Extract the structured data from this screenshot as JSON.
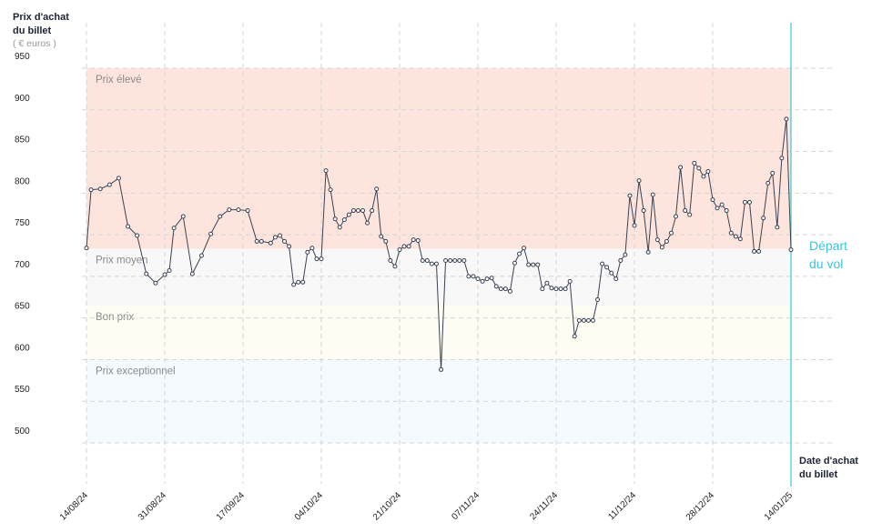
{
  "chart_data": {
    "type": "line",
    "y_label": [
      "Prix d'achat",
      "du billet"
    ],
    "y_unit": "( € euros )",
    "x_label": [
      "Date d'achat",
      "du billet"
    ],
    "xlim": [
      "2024-08-14",
      "2025-01-14"
    ],
    "xticks": [
      {
        "value": "2024-08-14",
        "label": "14/08/24"
      },
      {
        "value": "2024-08-31",
        "label": "31/08/24"
      },
      {
        "value": "2024-09-17",
        "label": "17/09/24"
      },
      {
        "value": "2024-10-04",
        "label": "04/10/24"
      },
      {
        "value": "2024-10-21",
        "label": "21/10/24"
      },
      {
        "value": "2024-11-07",
        "label": "07/11/24"
      },
      {
        "value": "2024-11-24",
        "label": "24/11/24"
      },
      {
        "value": "2024-12-11",
        "label": "11/12/24"
      },
      {
        "value": "2024-12-28",
        "label": "28/12/24"
      },
      {
        "value": "2025-01-14",
        "label": "14/01/25"
      }
    ],
    "ylim": [
      500,
      950
    ],
    "yticks": [
      500,
      550,
      600,
      650,
      700,
      750,
      800,
      850,
      900,
      950
    ],
    "grid": true,
    "bands": [
      {
        "name": "Prix élevé",
        "from": 733,
        "to": 950,
        "color": "#fde5de"
      },
      {
        "name": "Prix moyen",
        "from": 665,
        "to": 733,
        "color": "#f8f8f9"
      },
      {
        "name": "Bon prix",
        "from": 600,
        "to": 665,
        "color": "#fdfdf3"
      },
      {
        "name": "Prix exceptionnel",
        "from": 500,
        "to": 600,
        "color": "#f4fafd"
      }
    ],
    "marker_line": {
      "x": "2025-01-14",
      "label": [
        "Départ",
        "du vol"
      ],
      "color": "#3cc4dc"
    },
    "x": [
      "2024-08-14",
      "2024-08-15",
      "2024-08-17",
      "2024-08-19",
      "2024-08-21",
      "2024-08-23",
      "2024-08-25",
      "2024-08-27",
      "2024-08-29",
      "2024-08-31",
      "2024-09-01",
      "2024-09-02",
      "2024-09-04",
      "2024-09-06",
      "2024-09-08",
      "2024-09-10",
      "2024-09-12",
      "2024-09-14",
      "2024-09-16",
      "2024-09-18",
      "2024-09-20",
      "2024-09-21",
      "2024-09-23",
      "2024-09-24",
      "2024-09-25",
      "2024-09-26",
      "2024-09-27",
      "2024-09-28",
      "2024-09-29",
      "2024-09-30",
      "2024-10-01",
      "2024-10-02",
      "2024-10-03",
      "2024-10-04",
      "2024-10-05",
      "2024-10-06",
      "2024-10-07",
      "2024-10-08",
      "2024-10-09",
      "2024-10-10",
      "2024-10-11",
      "2024-10-12",
      "2024-10-13",
      "2024-10-14",
      "2024-10-15",
      "2024-10-16",
      "2024-10-17",
      "2024-10-18",
      "2024-10-19",
      "2024-10-20",
      "2024-10-21",
      "2024-10-22",
      "2024-10-23",
      "2024-10-24",
      "2024-10-25",
      "2024-10-26",
      "2024-10-27",
      "2024-10-28",
      "2024-10-29",
      "2024-10-30",
      "2024-10-31",
      "2024-11-01",
      "2024-11-02",
      "2024-11-03",
      "2024-11-04",
      "2024-11-05",
      "2024-11-06",
      "2024-11-07",
      "2024-11-08",
      "2024-11-09",
      "2024-11-10",
      "2024-11-11",
      "2024-11-12",
      "2024-11-13",
      "2024-11-14",
      "2024-11-15",
      "2024-11-16",
      "2024-11-17",
      "2024-11-18",
      "2024-11-19",
      "2024-11-20",
      "2024-11-21",
      "2024-11-22",
      "2024-11-23",
      "2024-11-24",
      "2024-11-25",
      "2024-11-26",
      "2024-11-27",
      "2024-11-28",
      "2024-11-29",
      "2024-11-30",
      "2024-12-01",
      "2024-12-02",
      "2024-12-03",
      "2024-12-04",
      "2024-12-05",
      "2024-12-06",
      "2024-12-07",
      "2024-12-08",
      "2024-12-09",
      "2024-12-10",
      "2024-12-11",
      "2024-12-12",
      "2024-12-13",
      "2024-12-14",
      "2024-12-15",
      "2024-12-16",
      "2024-12-17",
      "2024-12-18",
      "2024-12-19",
      "2024-12-20",
      "2024-12-21",
      "2024-12-22",
      "2024-12-23",
      "2024-12-24",
      "2024-12-25",
      "2024-12-26",
      "2024-12-27",
      "2024-12-28",
      "2024-12-29",
      "2024-12-30",
      "2024-12-31",
      "2025-01-01",
      "2025-01-02",
      "2025-01-03",
      "2025-01-04",
      "2025-01-05",
      "2025-01-06",
      "2025-01-07",
      "2025-01-08",
      "2025-01-09",
      "2025-01-10",
      "2025-01-11",
      "2025-01-12",
      "2025-01-13",
      "2025-01-14"
    ],
    "series": [
      {
        "color": "#3a4152",
        "values": [
          734,
          804,
          805,
          810,
          818,
          760,
          749,
          703,
          692,
          702,
          707,
          758,
          772,
          703,
          725,
          751,
          772,
          780,
          780,
          779,
          742,
          742,
          740,
          747,
          749,
          742,
          736,
          690,
          693,
          693,
          729,
          734,
          721,
          721,
          827,
          804,
          769,
          759,
          768,
          774,
          779,
          779,
          779,
          764,
          779,
          805,
          748,
          742,
          719,
          712,
          732,
          736,
          736,
          744,
          743,
          719,
          719,
          715,
          715,
          588,
          719,
          719,
          719,
          719,
          719,
          700,
          700,
          697,
          694,
          697,
          698,
          688,
          685,
          685,
          682,
          716,
          727,
          734,
          714,
          714,
          714,
          685,
          692,
          686,
          685,
          685,
          685,
          694,
          628,
          647,
          647,
          647,
          647,
          672,
          715,
          711,
          704,
          697,
          719,
          726,
          797,
          761,
          815,
          779,
          729,
          798,
          744,
          735,
          742,
          752,
          772,
          831,
          779,
          774,
          836,
          830,
          820,
          826,
          792,
          782,
          786,
          779,
          752,
          748,
          745,
          789,
          789,
          730,
          730,
          770,
          812,
          824,
          759,
          842,
          889,
          732
        ]
      }
    ]
  }
}
